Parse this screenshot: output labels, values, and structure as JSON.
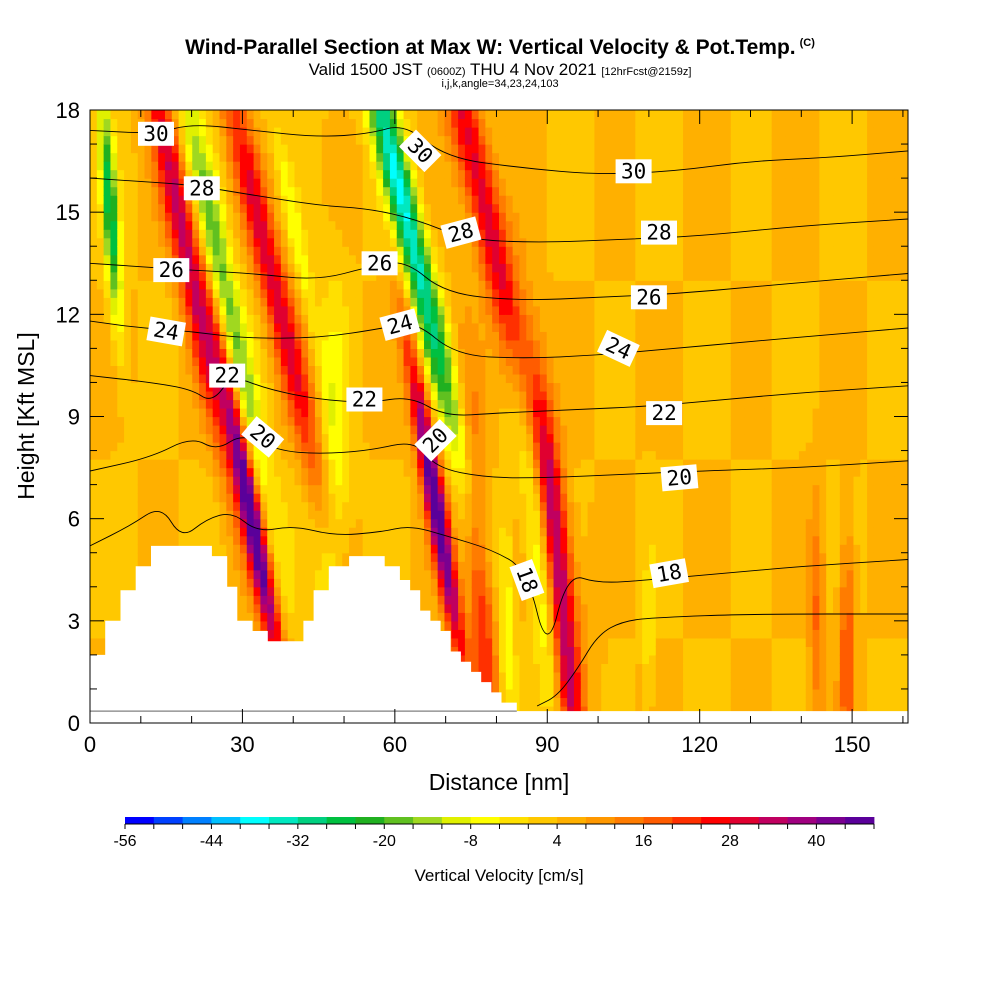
{
  "header": {
    "title": "Wind-Parallel Section at Max W: Vertical Velocity & Pot.Temp.",
    "title_mark": "(C)",
    "valid_prefix": "Valid 1500 JST",
    "valid_z": "(0600Z)",
    "valid_date": "THU 4 Nov 2021",
    "forecast": "[12hrFcst@2159z]",
    "indices": "i,j,k,angle=34,23,24,103"
  },
  "chart_data": {
    "type": "heatmap",
    "title": "Wind-Parallel Section at Max W: Vertical Velocity & Pot.Temp.",
    "xlabel": "Distance [nm]",
    "ylabel": "Height [Kft MSL]",
    "xlim": [
      0,
      161
    ],
    "ylim": [
      0,
      18
    ],
    "x_ticks": [
      "0",
      "30",
      "60",
      "90",
      "120",
      "150"
    ],
    "y_ticks": [
      "0",
      "3",
      "6",
      "9",
      "12",
      "15",
      "18"
    ],
    "colorbar": {
      "title": "Vertical Velocity [cm/s]",
      "min": -56,
      "max": 48,
      "step": 4,
      "labels": [
        "-56",
        "-44",
        "-32",
        "-20",
        "-8",
        "4",
        "16",
        "28",
        "40"
      ],
      "colors": [
        "#0000ff",
        "#0040ff",
        "#0080ff",
        "#00c0ff",
        "#00ffff",
        "#00e8c0",
        "#00d080",
        "#00c040",
        "#20b020",
        "#60c020",
        "#a0d820",
        "#e0f000",
        "#ffff00",
        "#ffe000",
        "#ffc800",
        "#ffb000",
        "#ff9800",
        "#ff7c00",
        "#ff5c00",
        "#ff3000",
        "#ff0000",
        "#e00030",
        "#c00060",
        "#a00080",
        "#7a0090",
        "#5a009a"
      ]
    },
    "background_value": 4,
    "updrafts": [
      {
        "x": 19,
        "z": 14,
        "width": 3.0,
        "amplitude": 30,
        "tilt": 0.6
      },
      {
        "x": 32,
        "z": 6.0,
        "width": 2.0,
        "amplitude": 44,
        "tilt": 0.55
      },
      {
        "x": 36,
        "z": 13,
        "width": 3.0,
        "amplitude": 26,
        "tilt": 0.7
      },
      {
        "x": 68,
        "z": 6.5,
        "width": 2.0,
        "amplitude": 46,
        "tilt": 0.5
      },
      {
        "x": 78,
        "z": 15,
        "width": 3.5,
        "amplitude": 28,
        "tilt": 0.7
      },
      {
        "x": 93,
        "z": 3.2,
        "width": 2.5,
        "amplitude": 32,
        "tilt": 0.3
      },
      {
        "x": 77,
        "z": 4.0,
        "width": 2.5,
        "amplitude": 20,
        "tilt": 0.2
      },
      {
        "x": 149,
        "z": 2.5,
        "width": 1.5,
        "amplitude": 16,
        "tilt": 0.0
      },
      {
        "x": 143,
        "z": 3.0,
        "width": 1.5,
        "amplitude": 12,
        "tilt": 0.0
      }
    ],
    "downdrafts": [
      {
        "x": 4,
        "z": 15,
        "width": 1.5,
        "amplitude": -30,
        "tilt": 0.2
      },
      {
        "x": 26,
        "z": 13,
        "width": 3.0,
        "amplitude": -22,
        "tilt": 0.6
      },
      {
        "x": 41,
        "z": 14,
        "width": 1.5,
        "amplitude": -10,
        "tilt": 0.6
      },
      {
        "x": 48,
        "z": 5.0,
        "width": 3.0,
        "amplitude": -14,
        "tilt": 0.0
      },
      {
        "x": 62,
        "z": 15,
        "width": 3.0,
        "amplitude": -40,
        "tilt": 0.7
      },
      {
        "x": 88,
        "z": 5.5,
        "width": 2.5,
        "amplitude": -14,
        "tilt": 0.3
      },
      {
        "x": 82,
        "z": 3.0,
        "width": 1.5,
        "amplitude": -10,
        "tilt": 0.0
      },
      {
        "x": 110,
        "z": 2.5,
        "width": 1.0,
        "amplitude": -8,
        "tilt": 0.0
      }
    ],
    "terrain_kft": [
      [
        0,
        2.0
      ],
      [
        3,
        2.0
      ],
      [
        3,
        3.0
      ],
      [
        6,
        3.0
      ],
      [
        6,
        3.9
      ],
      [
        9,
        3.9
      ],
      [
        9,
        4.6
      ],
      [
        12,
        4.6
      ],
      [
        12,
        5.2
      ],
      [
        24,
        5.2
      ],
      [
        24,
        4.9
      ],
      [
        27,
        4.9
      ],
      [
        27,
        4.0
      ],
      [
        29,
        4.0
      ],
      [
        29,
        3.0
      ],
      [
        32,
        3.0
      ],
      [
        32,
        2.7
      ],
      [
        35,
        2.7
      ],
      [
        35,
        2.4
      ],
      [
        42,
        2.4
      ],
      [
        42,
        3.0
      ],
      [
        44,
        3.0
      ],
      [
        44,
        3.9
      ],
      [
        47,
        3.9
      ],
      [
        47,
        4.6
      ],
      [
        51,
        4.6
      ],
      [
        51,
        4.9
      ],
      [
        58,
        4.9
      ],
      [
        58,
        4.6
      ],
      [
        61,
        4.6
      ],
      [
        61,
        4.2
      ],
      [
        63,
        4.2
      ],
      [
        63,
        3.9
      ],
      [
        65,
        3.9
      ],
      [
        65,
        3.3
      ],
      [
        67,
        3.3
      ],
      [
        67,
        3.0
      ],
      [
        69,
        3.0
      ],
      [
        69,
        2.7
      ],
      [
        71,
        2.7
      ],
      [
        71,
        2.1
      ],
      [
        73,
        2.1
      ],
      [
        73,
        1.8
      ],
      [
        75,
        1.8
      ],
      [
        75,
        1.5
      ],
      [
        77,
        1.5
      ],
      [
        77,
        1.2
      ],
      [
        79,
        1.2
      ],
      [
        79,
        0.9
      ],
      [
        81,
        0.9
      ],
      [
        81,
        0.6
      ],
      [
        84,
        0.6
      ],
      [
        84,
        0.35
      ],
      [
        161,
        0.35
      ]
    ],
    "theta_contours": [
      {
        "value": 30,
        "label": "30",
        "points": [
          [
            0,
            17.4
          ],
          [
            13,
            17.3
          ],
          [
            20,
            17.6
          ],
          [
            32,
            17.4
          ],
          [
            45,
            17.2
          ],
          [
            55,
            17.3
          ],
          [
            62,
            17.6
          ],
          [
            70,
            16.6
          ],
          [
            85,
            16.3
          ],
          [
            100,
            16.1
          ],
          [
            115,
            16.2
          ],
          [
            130,
            16.5
          ],
          [
            145,
            16.6
          ],
          [
            161,
            16.8
          ]
        ]
      },
      {
        "value": 28,
        "label": "28",
        "points": [
          [
            0,
            16.0
          ],
          [
            10,
            15.9
          ],
          [
            20,
            15.8
          ],
          [
            32,
            15.5
          ],
          [
            45,
            15.2
          ],
          [
            55,
            15.1
          ],
          [
            64,
            14.8
          ],
          [
            74,
            14.2
          ],
          [
            88,
            14.1
          ],
          [
            105,
            14.2
          ],
          [
            120,
            14.3
          ],
          [
            140,
            14.6
          ],
          [
            161,
            14.8
          ]
        ]
      },
      {
        "value": 26,
        "label": "26",
        "points": [
          [
            0,
            13.5
          ],
          [
            10,
            13.4
          ],
          [
            20,
            13.3
          ],
          [
            32,
            13.2
          ],
          [
            45,
            13.0
          ],
          [
            55,
            13.4
          ],
          [
            62,
            13.6
          ],
          [
            70,
            12.6
          ],
          [
            85,
            12.4
          ],
          [
            100,
            12.5
          ],
          [
            115,
            12.6
          ],
          [
            130,
            12.8
          ],
          [
            145,
            13.0
          ],
          [
            161,
            13.2
          ]
        ]
      },
      {
        "value": 24,
        "label": "24",
        "points": [
          [
            0,
            11.8
          ],
          [
            10,
            11.6
          ],
          [
            20,
            11.5
          ],
          [
            30,
            11.3
          ],
          [
            45,
            11.3
          ],
          [
            58,
            11.6
          ],
          [
            64,
            11.8
          ],
          [
            72,
            10.8
          ],
          [
            85,
            10.7
          ],
          [
            100,
            10.8
          ],
          [
            115,
            11.0
          ],
          [
            130,
            11.2
          ],
          [
            145,
            11.4
          ],
          [
            161,
            11.6
          ]
        ]
      },
      {
        "value": 22,
        "label": "22",
        "points": [
          [
            0,
            10.2
          ],
          [
            12,
            10.0
          ],
          [
            20,
            9.8
          ],
          [
            24,
            9.4
          ],
          [
            28,
            10.2
          ],
          [
            35,
            9.8
          ],
          [
            45,
            9.5
          ],
          [
            55,
            9.4
          ],
          [
            63,
            9.6
          ],
          [
            70,
            9.0
          ],
          [
            80,
            9.1
          ],
          [
            95,
            9.2
          ],
          [
            110,
            9.3
          ],
          [
            125,
            9.5
          ],
          [
            140,
            9.7
          ],
          [
            161,
            9.9
          ]
        ]
      },
      {
        "value": 20,
        "label": "20",
        "points": [
          [
            0,
            7.4
          ],
          [
            12,
            7.8
          ],
          [
            20,
            8.4
          ],
          [
            25,
            8.0
          ],
          [
            30,
            8.5
          ],
          [
            37,
            8.0
          ],
          [
            45,
            7.9
          ],
          [
            55,
            8.0
          ],
          [
            64,
            8.3
          ],
          [
            68,
            7.5
          ],
          [
            78,
            7.2
          ],
          [
            90,
            7.2
          ],
          [
            105,
            7.3
          ],
          [
            120,
            7.4
          ],
          [
            140,
            7.5
          ],
          [
            161,
            7.7
          ]
        ]
      },
      {
        "value": 18,
        "label": "18",
        "points": [
          [
            0,
            5.2
          ],
          [
            8,
            5.8
          ],
          [
            14,
            6.4
          ],
          [
            18,
            5.4
          ],
          [
            23,
            6.0
          ],
          [
            28,
            6.2
          ],
          [
            33,
            5.6
          ],
          [
            40,
            5.8
          ],
          [
            48,
            5.5
          ],
          [
            57,
            5.6
          ],
          [
            63,
            5.8
          ],
          [
            70,
            5.5
          ],
          [
            79,
            5.1
          ],
          [
            86,
            4.5
          ],
          [
            90,
            2.0
          ],
          [
            94,
            4.4
          ],
          [
            100,
            4.1
          ],
          [
            110,
            4.2
          ],
          [
            125,
            4.4
          ],
          [
            140,
            4.6
          ],
          [
            161,
            4.8
          ]
        ]
      },
      {
        "value": 16,
        "label": "",
        "points": [
          [
            88,
            0.5
          ],
          [
            92,
            0.8
          ],
          [
            96,
            1.6
          ],
          [
            100,
            2.6
          ],
          [
            105,
            3.0
          ],
          [
            112,
            3.1
          ],
          [
            130,
            3.2
          ],
          [
            161,
            3.2
          ]
        ]
      }
    ],
    "contour_labels": [
      {
        "text": "30",
        "x": 13,
        "z": 17.3,
        "angle": 0
      },
      {
        "text": "28",
        "x": 22,
        "z": 15.7,
        "angle": 0
      },
      {
        "text": "26",
        "x": 16,
        "z": 13.3,
        "angle": 0
      },
      {
        "text": "24",
        "x": 15,
        "z": 11.5,
        "angle": 10
      },
      {
        "text": "22",
        "x": 27,
        "z": 10.2,
        "angle": 0
      },
      {
        "text": "20",
        "x": 34,
        "z": 8.4,
        "angle": 40
      },
      {
        "text": "30",
        "x": 65,
        "z": 16.8,
        "angle": 45
      },
      {
        "text": "28",
        "x": 73,
        "z": 14.4,
        "angle": -15
      },
      {
        "text": "26",
        "x": 57,
        "z": 13.5,
        "angle": 0
      },
      {
        "text": "24",
        "x": 61,
        "z": 11.7,
        "angle": -15
      },
      {
        "text": "22",
        "x": 54,
        "z": 9.5,
        "angle": 0
      },
      {
        "text": "20",
        "x": 68,
        "z": 8.3,
        "angle": -45
      },
      {
        "text": "30",
        "x": 107,
        "z": 16.2,
        "angle": 0
      },
      {
        "text": "28",
        "x": 112,
        "z": 14.4,
        "angle": 0
      },
      {
        "text": "26",
        "x": 110,
        "z": 12.5,
        "angle": 0
      },
      {
        "text": "24",
        "x": 104,
        "z": 11.0,
        "angle": 25
      },
      {
        "text": "22",
        "x": 113,
        "z": 9.1,
        "angle": 0
      },
      {
        "text": "20",
        "x": 116,
        "z": 7.2,
        "angle": -5
      },
      {
        "text": "18",
        "x": 114,
        "z": 4.4,
        "angle": -10
      },
      {
        "text": "18",
        "x": 86,
        "z": 4.2,
        "angle": 70
      }
    ]
  }
}
